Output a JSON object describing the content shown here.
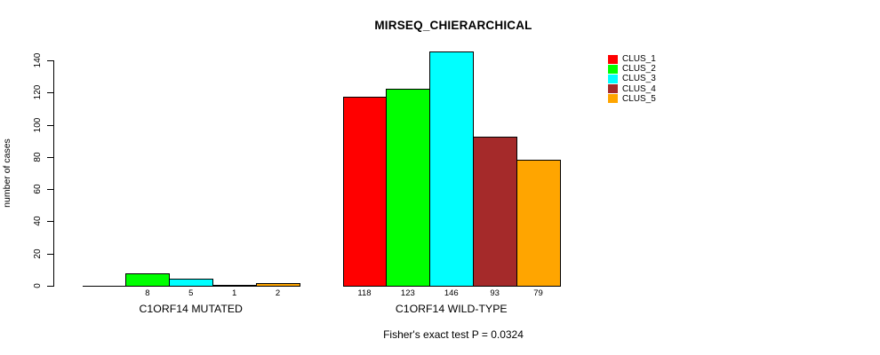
{
  "chart_data": {
    "type": "bar",
    "title": "MIRSEQ_CHIERARCHICAL",
    "ylabel": "number of cases",
    "annotation": "Fisher's exact test P = 0.0324",
    "ylim": [
      0,
      140
    ],
    "yticks": [
      0,
      20,
      40,
      60,
      80,
      100,
      120,
      140
    ],
    "grid": false,
    "legend_position": "topright",
    "series_names": [
      "CLUS_1",
      "CLUS_2",
      "CLUS_3",
      "CLUS_4",
      "CLUS_5"
    ],
    "series_colors": [
      "#FF0000",
      "#00FF00",
      "#00FFFF",
      "#A52A2A",
      "#FFA500"
    ],
    "groups": [
      {
        "label": "C1ORF14 MUTATED",
        "values": [
          0,
          8,
          5,
          1,
          2
        ],
        "value_labels": [
          "",
          "8",
          "5",
          "1",
          "2"
        ]
      },
      {
        "label": "C1ORF14 WILD-TYPE",
        "values": [
          118,
          123,
          146,
          93,
          79
        ],
        "value_labels": [
          "118",
          "123",
          "146",
          "93",
          "79"
        ]
      }
    ],
    "background_color": "#FFFFFF",
    "axis_color": "#000000"
  }
}
